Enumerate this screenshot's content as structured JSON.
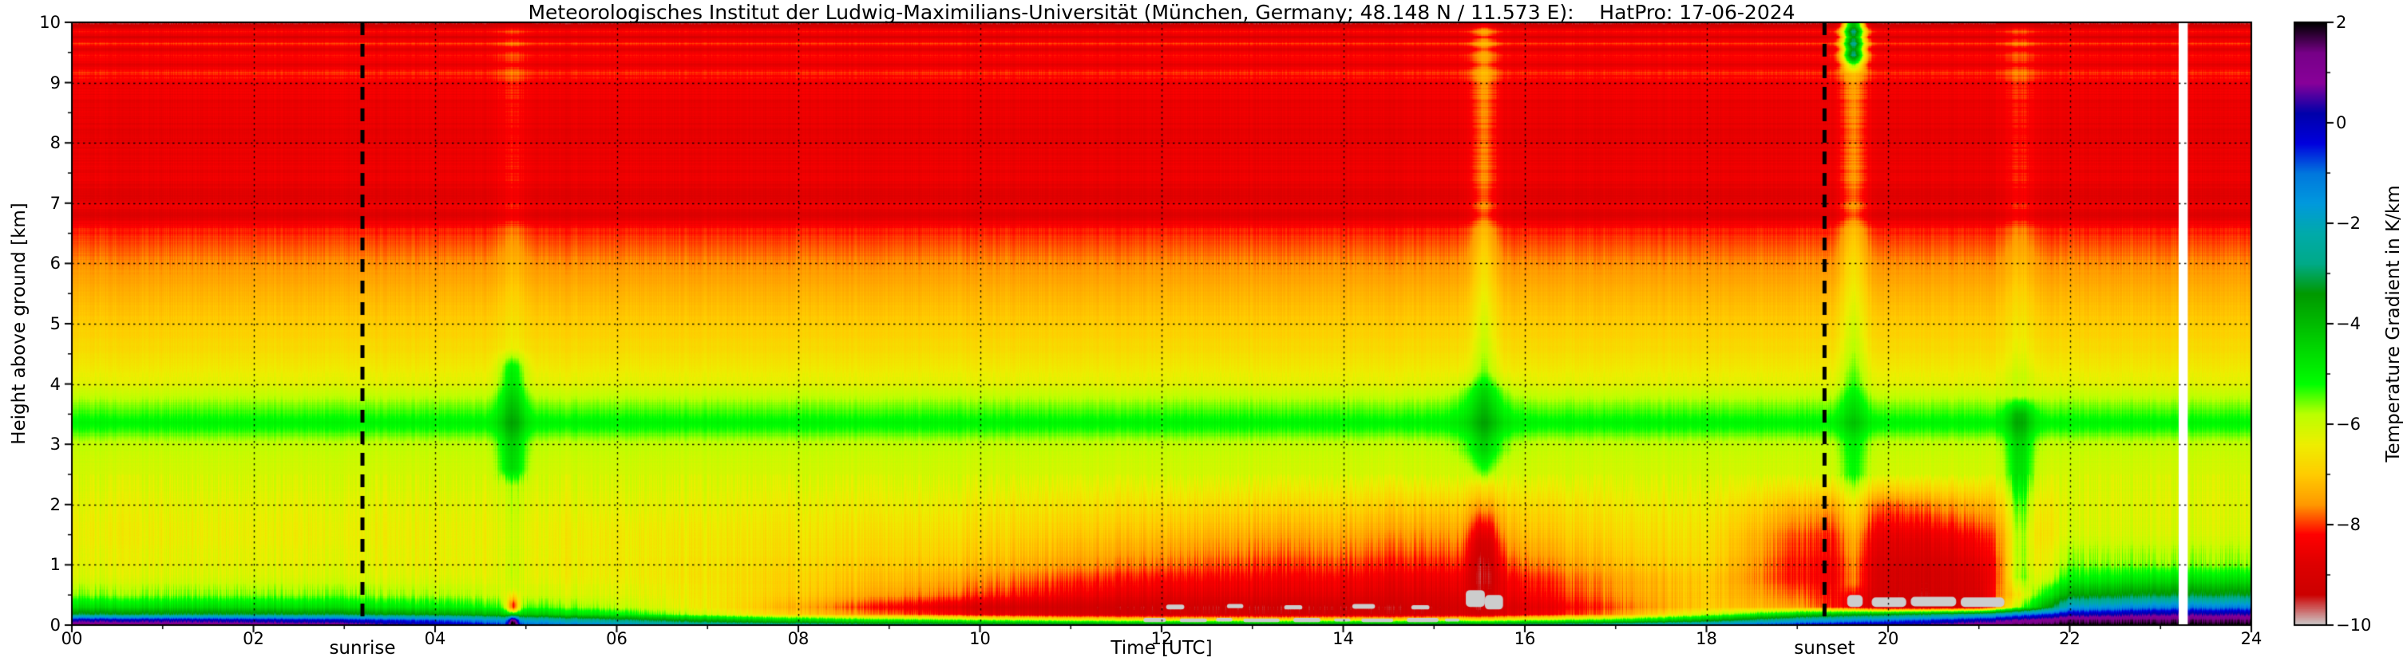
{
  "chart_data": {
    "type": "heatmap",
    "title": "Meteorologisches Institut der Ludwig-Maximilians-Universität (München, Germany; 48.148 N / 11.573 E):    HatPro: 17-06-2024",
    "xlabel": "Time [UTC]",
    "ylabel": "Height above ground [km]",
    "colorbar_label": "Temperature Gradient in K/km",
    "x_range": [
      0,
      24
    ],
    "y_range": [
      0,
      10
    ],
    "value_top": 2,
    "value_bottom": -10,
    "x_ticks": {
      "values": [
        0,
        2,
        4,
        6,
        8,
        10,
        12,
        14,
        16,
        18,
        20,
        22,
        24
      ],
      "labels": [
        "00",
        "02",
        "04",
        "06",
        "08",
        "10",
        "12",
        "14",
        "16",
        "18",
        "20",
        "22",
        "24"
      ],
      "minor": [
        1,
        3,
        5,
        7,
        9,
        11,
        13,
        15,
        17,
        19,
        21,
        23
      ]
    },
    "y_ticks": {
      "values": [
        0,
        1,
        2,
        3,
        4,
        5,
        6,
        7,
        8,
        9,
        10
      ],
      "labels": [
        "0",
        "1",
        "2",
        "3",
        "4",
        "5",
        "6",
        "7",
        "8",
        "9",
        "10"
      ],
      "minor": [
        0.5,
        1.5,
        2.5,
        3.5,
        4.5,
        5.5,
        6.5,
        7.5,
        8.5,
        9.5
      ]
    },
    "colorbar_ticks": {
      "values": [
        2,
        0,
        -2,
        -4,
        -6,
        -8,
        -10
      ],
      "labels": [
        "2",
        "0",
        "−2",
        "−4",
        "−6",
        "−8",
        "−10"
      ],
      "minor": [
        1,
        -1,
        -3,
        -5,
        -7,
        -9
      ]
    },
    "colormap": {
      "name": "nipy_spectral",
      "stops": [
        [
          0.0,
          "#000000"
        ],
        [
          0.05,
          "#770088"
        ],
        [
          0.1,
          "#880099"
        ],
        [
          0.15,
          "#0000AA"
        ],
        [
          0.2,
          "#0000DD"
        ],
        [
          0.25,
          "#0077DD"
        ],
        [
          0.3,
          "#0099DD"
        ],
        [
          0.35,
          "#00AAAA"
        ],
        [
          0.4,
          "#00AA88"
        ],
        [
          0.45,
          "#009900"
        ],
        [
          0.5,
          "#00BB00"
        ],
        [
          0.55,
          "#00DD00"
        ],
        [
          0.6,
          "#00FF00"
        ],
        [
          0.65,
          "#BBFF00"
        ],
        [
          0.7,
          "#EEEE00"
        ],
        [
          0.75,
          "#FFCC00"
        ],
        [
          0.8,
          "#FF9900"
        ],
        [
          0.85,
          "#FF0000"
        ],
        [
          0.9,
          "#DD0000"
        ],
        [
          0.95,
          "#CC0000"
        ],
        [
          1.0,
          "#CCCCCC"
        ]
      ]
    },
    "annotations": {
      "sunrise": {
        "time_utc": 3.2,
        "label": "sunrise"
      },
      "sunset": {
        "time_utc": 19.3,
        "label": "sunset"
      }
    },
    "grid": {
      "times": [
        0,
        1,
        2,
        3,
        4,
        5,
        6,
        7,
        8,
        9,
        10,
        11,
        12,
        13,
        14,
        15,
        16,
        17,
        18,
        19,
        20,
        21,
        22,
        23,
        24
      ],
      "profiles": [
        {
          "h": 0.0,
          "v": [
            1.5,
            1.5,
            1.2,
            1.0,
            0.3,
            -0.8,
            -1.5,
            -2.0,
            -2.2,
            -2.5,
            -2.5,
            -2.5,
            -2.5,
            -2.5,
            -2.5,
            -2.5,
            -2.2,
            -1.8,
            -1.2,
            -0.2,
            0.5,
            1.2,
            2.0,
            2.0,
            2.0
          ]
        },
        {
          "h": 0.08,
          "v": [
            0.2,
            0.2,
            0.0,
            -0.2,
            -0.8,
            -1.8,
            -2.8,
            -3.8,
            -4.5,
            -5.0,
            -5.5,
            -6.0,
            -6.2,
            -6.2,
            -6.2,
            -6.2,
            -5.8,
            -5.0,
            -3.8,
            -2.0,
            -1.0,
            0.2,
            1.5,
            1.6,
            1.6
          ]
        },
        {
          "h": 0.18,
          "v": [
            -3.2,
            -3.2,
            -3.2,
            -3.3,
            -3.6,
            -4.2,
            -5.0,
            -6.0,
            -7.0,
            -7.8,
            -8.6,
            -9.0,
            -9.2,
            -9.2,
            -9.2,
            -9.2,
            -8.6,
            -7.6,
            -6.0,
            -4.5,
            -3.5,
            -2.5,
            0.0,
            0.4,
            0.4
          ]
        },
        {
          "h": 0.3,
          "v": [
            -4.6,
            -4.6,
            -4.6,
            -4.7,
            -5.0,
            -5.4,
            -5.9,
            -6.5,
            -7.4,
            -8.3,
            -9.0,
            -9.2,
            -9.3,
            -9.3,
            -9.3,
            -9.3,
            -8.8,
            -7.9,
            -7.0,
            -7.5,
            -9.2,
            -9.0,
            -1.8,
            -1.2,
            -1.2
          ]
        },
        {
          "h": 0.5,
          "v": [
            -5.6,
            -5.6,
            -5.6,
            -5.6,
            -5.8,
            -6.0,
            -6.2,
            -6.5,
            -7.0,
            -7.5,
            -8.0,
            -8.4,
            -8.7,
            -8.7,
            -8.7,
            -8.9,
            -8.4,
            -7.6,
            -7.0,
            -7.8,
            -9.0,
            -8.8,
            -3.6,
            -3.2,
            -3.2
          ]
        },
        {
          "h": 0.75,
          "v": [
            -6.1,
            -6.1,
            -6.1,
            -6.1,
            -6.2,
            -6.3,
            -6.4,
            -6.6,
            -6.9,
            -7.2,
            -7.6,
            -8.0,
            -8.3,
            -8.4,
            -8.4,
            -8.6,
            -8.2,
            -7.5,
            -7.0,
            -8.2,
            -8.8,
            -8.6,
            -5.0,
            -4.6,
            -4.6
          ]
        },
        {
          "h": 1.0,
          "v": [
            -6.3,
            -6.3,
            -6.3,
            -6.3,
            -6.4,
            -6.4,
            -6.5,
            -6.6,
            -6.8,
            -7.0,
            -7.2,
            -7.5,
            -7.8,
            -8.0,
            -8.0,
            -8.2,
            -7.8,
            -7.2,
            -6.8,
            -8.2,
            -8.7,
            -8.4,
            -5.6,
            -5.6,
            -5.6
          ]
        },
        {
          "h": 1.5,
          "v": [
            -6.4,
            -6.4,
            -6.4,
            -6.4,
            -6.4,
            -6.4,
            -6.5,
            -6.5,
            -6.6,
            -6.7,
            -6.8,
            -7.0,
            -7.2,
            -7.4,
            -7.4,
            -7.6,
            -7.2,
            -6.8,
            -6.6,
            -7.9,
            -8.4,
            -8.0,
            -6.1,
            -6.1,
            -6.1
          ]
        },
        {
          "h": 2.0,
          "v": [
            -6.3,
            -6.3,
            -6.3,
            -6.3,
            -6.3,
            -6.3,
            -6.3,
            -6.3,
            -6.4,
            -6.4,
            -6.5,
            -6.6,
            -6.7,
            -6.8,
            -6.8,
            -7.0,
            -6.8,
            -6.5,
            -6.4,
            -7.2,
            -7.8,
            -7.3,
            -6.2,
            -6.2,
            -6.2
          ]
        },
        {
          "h": 2.5,
          "v": -6.1
        },
        {
          "h": 3.0,
          "v": -5.9
        },
        {
          "h": 3.35,
          "v": -5.05
        },
        {
          "h": 3.6,
          "v": -5.5
        },
        {
          "h": 4.0,
          "v": -6.25
        },
        {
          "h": 4.5,
          "v": -6.7
        },
        {
          "h": 5.0,
          "v": -7.0
        },
        {
          "h": 5.5,
          "v": -7.3
        },
        {
          "h": 6.0,
          "v": -7.65
        },
        {
          "h": 6.55,
          "v": -8.1
        },
        {
          "h": 6.8,
          "v": -8.8
        },
        {
          "h": 6.95,
          "v": -8.45
        },
        {
          "h": 7.1,
          "v": -8.85
        },
        {
          "h": 7.4,
          "v": -8.5
        },
        {
          "h": 8.0,
          "v": -8.6
        },
        {
          "h": 8.6,
          "v": -8.55
        },
        {
          "h": 9.0,
          "v": -8.4
        },
        {
          "h": 9.15,
          "v": -8.05
        },
        {
          "h": 9.3,
          "v": -8.6
        },
        {
          "h": 9.45,
          "v": -8.15
        },
        {
          "h": 9.55,
          "v": -8.75
        },
        {
          "h": 9.65,
          "v": -8.05
        },
        {
          "h": 9.75,
          "v": -8.9
        },
        {
          "h": 9.85,
          "v": -8.2
        },
        {
          "h": 9.95,
          "v": -9.3
        },
        {
          "h": 10.0,
          "v": -9.5
        }
      ]
    },
    "plumes": [
      {
        "t": 4.85,
        "st": 0.1,
        "h0": 2.3,
        "h1": 4.6,
        "amp": 1.1
      },
      {
        "t": 4.85,
        "st": 0.12,
        "h0": 0.55,
        "h1": 10,
        "amp": 0.35
      },
      {
        "t": 15.55,
        "st": 0.1,
        "h0": 2.3,
        "h1": 10,
        "amp": 0.85
      },
      {
        "t": 15.55,
        "st": 0.2,
        "h0": 2.6,
        "h1": 4.2,
        "amp": 0.6
      },
      {
        "t": 19.62,
        "st": 0.1,
        "h0": 0.4,
        "h1": 10,
        "amp": 0.9
      },
      {
        "t": 19.62,
        "st": 0.08,
        "h0": 9.15,
        "h1": 10,
        "amp": 4.5
      },
      {
        "t": 21.45,
        "st": 0.1,
        "h0": 0.5,
        "h1": 3.8,
        "amp": 1.4
      },
      {
        "t": 21.45,
        "st": 0.12,
        "h0": 3.8,
        "h1": 10,
        "amp": 0.4
      }
    ],
    "blobs": [
      {
        "t": 15.55,
        "st": 0.12,
        "h": 1.2,
        "sh": 0.55,
        "amp": -1.6
      },
      {
        "t": 20.5,
        "st": 0.5,
        "h": 1.0,
        "sh": 0.5,
        "amp": -0.5
      },
      {
        "t": 4.86,
        "st": 0.05,
        "h": 0.3,
        "sh": 0.12,
        "amp": -2.8
      },
      {
        "t": 4.86,
        "st": 0.04,
        "h": 0.06,
        "sh": 0.09,
        "amp": 3.5
      }
    ],
    "gray_patches": [
      [
        11.8,
        12.05,
        0.05,
        0.12
      ],
      [
        12.2,
        12.5,
        0.05,
        0.11
      ],
      [
        12.6,
        12.78,
        0.06,
        0.12
      ],
      [
        12.9,
        13.3,
        0.05,
        0.11
      ],
      [
        13.45,
        13.75,
        0.05,
        0.12
      ],
      [
        13.9,
        14.08,
        0.06,
        0.11
      ],
      [
        14.2,
        14.55,
        0.05,
        0.11
      ],
      [
        14.7,
        15.05,
        0.05,
        0.12
      ],
      [
        15.12,
        15.28,
        0.06,
        0.11
      ],
      [
        12.05,
        12.25,
        0.26,
        0.34
      ],
      [
        12.72,
        12.9,
        0.28,
        0.35
      ],
      [
        13.35,
        13.55,
        0.26,
        0.33
      ],
      [
        14.1,
        14.35,
        0.27,
        0.35
      ],
      [
        14.75,
        14.95,
        0.26,
        0.33
      ],
      [
        15.35,
        15.56,
        0.3,
        0.58
      ],
      [
        15.56,
        15.76,
        0.26,
        0.5
      ],
      [
        19.55,
        19.72,
        0.3,
        0.5
      ],
      [
        19.82,
        20.2,
        0.3,
        0.46
      ],
      [
        20.25,
        20.75,
        0.31,
        0.47
      ],
      [
        20.8,
        21.28,
        0.3,
        0.46
      ]
    ],
    "missing_data_columns": [
      {
        "t0": 23.2,
        "t1": 23.3
      }
    ],
    "texture_noise": {
      "upper_amp": 0.1,
      "lower_amp": 0.25,
      "lower_below_km": 2.5
    }
  }
}
